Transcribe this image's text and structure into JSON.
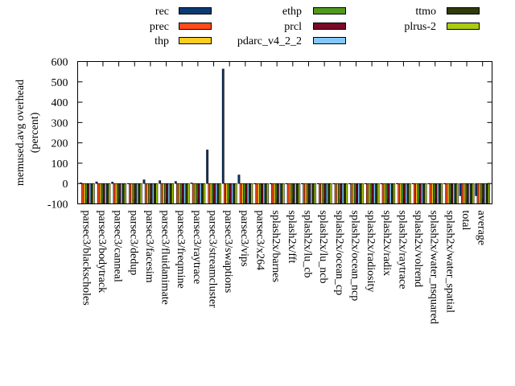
{
  "chart_data": {
    "type": "bar",
    "title": "",
    "xlabel": "",
    "ylabel": "memused.avg overhead",
    "ylabel2": "(percent)",
    "ylim": [
      -100,
      600
    ],
    "yticks": [
      "600",
      "500",
      "400",
      "300",
      "200",
      "100",
      "0",
      "-100"
    ],
    "ytick_values": [
      600,
      500,
      400,
      300,
      200,
      100,
      0,
      -100
    ],
    "legend_position": "top",
    "categories": [
      "parsec3/blackscholes",
      "parsec3/bodytrack",
      "parsec3/canneal",
      "parsec3/dedup",
      "parsec3/facesim",
      "parsec3/fluidanimate",
      "parsec3/freqmine",
      "parsec3/raytrace",
      "parsec3/streamcluster",
      "parsec3/swaptions",
      "parsec3/vips",
      "parsec3/x264",
      "splash2x/barnes",
      "splash2x/fft",
      "splash2x/lu_cb",
      "splash2x/lu_ncb",
      "splash2x/ocean_cp",
      "splash2x/ocean_ncp",
      "splash2x/radiosity",
      "splash2x/radix",
      "splash2x/raytrace",
      "splash2x/volrend",
      "splash2x/water_nsquared",
      "splash2x/water_spatial",
      "total",
      "average"
    ],
    "series": [
      {
        "name": "rec",
        "color": "#0b3b75",
        "values": [
          3,
          8,
          7,
          0,
          18,
          14,
          10,
          3,
          165,
          563,
          42,
          0,
          0,
          0,
          0,
          0,
          0,
          0,
          0,
          0,
          0,
          0,
          0,
          0,
          -60,
          -60
        ]
      },
      {
        "name": "prec",
        "color": "#ff4a1c",
        "values": [
          -100,
          -100,
          -100,
          -100,
          -100,
          -100,
          -100,
          -100,
          -100,
          -100,
          -100,
          -100,
          -100,
          -100,
          -100,
          -100,
          -100,
          -100,
          -100,
          -100,
          -100,
          -100,
          -100,
          -100,
          -100,
          -100
        ]
      },
      {
        "name": "thp",
        "color": "#ffcc22",
        "values": [
          -100,
          -100,
          -100,
          -100,
          -100,
          -100,
          -100,
          -100,
          -100,
          -100,
          -100,
          -100,
          -100,
          -100,
          -100,
          -100,
          -100,
          -100,
          -100,
          -100,
          -100,
          -100,
          -100,
          -100,
          -100,
          -100
        ]
      },
      {
        "name": "ethp",
        "color": "#4f9a1e",
        "values": [
          -100,
          -100,
          -100,
          -100,
          -100,
          -100,
          -100,
          -100,
          -100,
          -100,
          -100,
          -100,
          -100,
          -100,
          -100,
          -100,
          -100,
          -100,
          -100,
          -100,
          -100,
          -100,
          -100,
          -100,
          -100,
          -100
        ]
      },
      {
        "name": "prcl",
        "color": "#7a0a26",
        "values": [
          -100,
          -100,
          -100,
          -100,
          -100,
          -100,
          -100,
          -100,
          -100,
          -100,
          -100,
          -100,
          -100,
          -100,
          -100,
          -100,
          -100,
          -100,
          -100,
          -100,
          -100,
          -100,
          -100,
          -100,
          -100,
          -100
        ]
      },
      {
        "name": "pdarc_v4_2_2",
        "color": "#82c8ff",
        "values": [
          -100,
          -100,
          -100,
          -100,
          -100,
          -100,
          -100,
          -100,
          -100,
          -100,
          -100,
          -100,
          -100,
          -100,
          -100,
          -100,
          -100,
          -100,
          -100,
          -100,
          -100,
          -100,
          -100,
          -100,
          -100,
          -100
        ]
      },
      {
        "name": "ttmo",
        "color": "#2e3b0b",
        "values": [
          -100,
          -100,
          -100,
          -100,
          -100,
          -100,
          -100,
          -100,
          -100,
          -100,
          -100,
          -100,
          -100,
          -100,
          -100,
          -100,
          -100,
          -100,
          -100,
          -100,
          -100,
          -100,
          -100,
          -100,
          -100,
          -100
        ]
      },
      {
        "name": "plrus-2",
        "color": "#a8cc12",
        "values": [
          -100,
          -100,
          -100,
          -100,
          -100,
          -100,
          -100,
          -100,
          -100,
          -100,
          -100,
          -100,
          -100,
          -100,
          -100,
          -100,
          -100,
          -100,
          -100,
          -100,
          -100,
          -100,
          -100,
          -100,
          -100,
          -100
        ]
      }
    ]
  }
}
